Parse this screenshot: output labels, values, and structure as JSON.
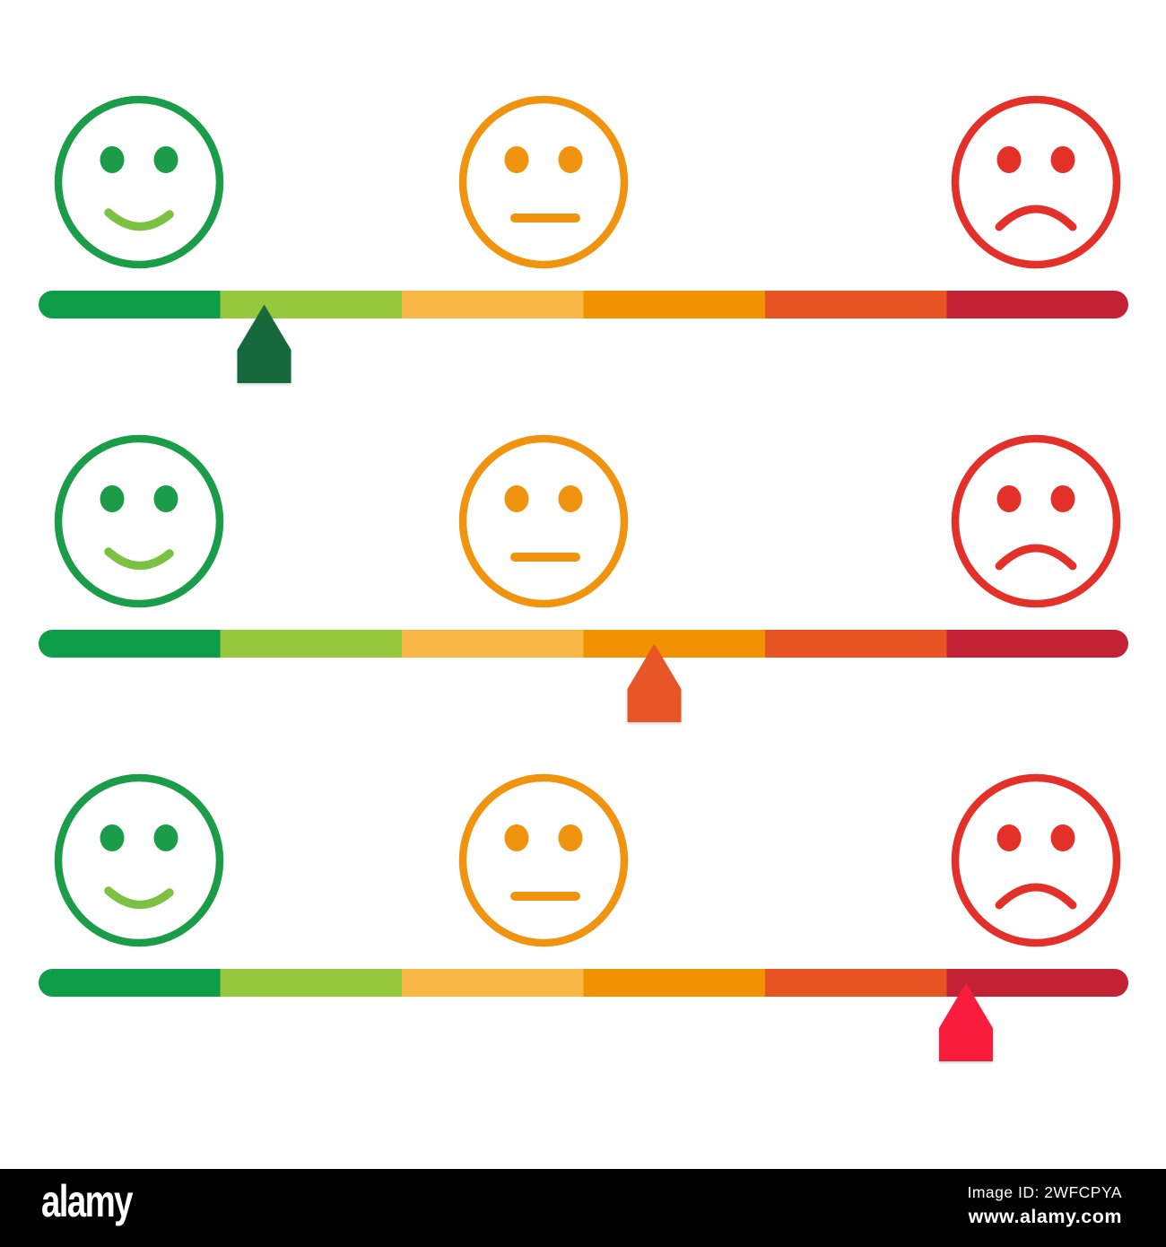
{
  "illustration": {
    "background": "#ffffff",
    "faces": [
      {
        "id": "happy",
        "color": "#1b9c49",
        "mouth_color": "#7cc142"
      },
      {
        "id": "neutral",
        "color": "#f0930f",
        "mouth_color": "#f0930f"
      },
      {
        "id": "sad",
        "color": "#e3312a",
        "mouth_color": "#e3312a"
      }
    ],
    "scale_segments": [
      {
        "name": "dark-green",
        "color": "#0b9d49"
      },
      {
        "name": "light-green",
        "color": "#95c83e"
      },
      {
        "name": "amber",
        "color": "#f9b845"
      },
      {
        "name": "orange",
        "color": "#f19200"
      },
      {
        "name": "orange-red",
        "color": "#e95523"
      },
      {
        "name": "dark-red",
        "color": "#c32134"
      }
    ],
    "rows": [
      {
        "index": 1,
        "pointer_color": "#17673e",
        "pointer_pct": 20.7
      },
      {
        "index": 2,
        "pointer_color": "#e85425",
        "pointer_pct": 56.5
      },
      {
        "index": 3,
        "pointer_color": "#fa1e3c",
        "pointer_pct": 85.1
      }
    ]
  },
  "footer": {
    "brand": "alamy",
    "image_id": "Image ID: 2WFCPYA",
    "website": "www.alamy.com",
    "background": "#000000",
    "text_color": "#ffffff"
  }
}
